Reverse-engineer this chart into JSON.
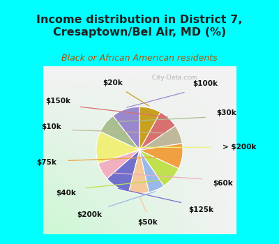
{
  "title": "Income distribution in District 7,\nCresaptown/Bel Air, MD (%)",
  "subtitle": "Black or African American residents",
  "bg_cyan": "#00FFFF",
  "bg_chart_edge": "#00e0e0",
  "labels": [
    "$100k",
    "$30k",
    "> $200k",
    "$60k",
    "$125k",
    "$50k",
    "$200k",
    "$40k",
    "$75k",
    "$10k",
    "$150k",
    "$20k"
  ],
  "sizes": [
    10.5,
    7.5,
    12.0,
    6.5,
    9.5,
    7.5,
    6.0,
    8.5,
    9.5,
    7.0,
    7.5,
    8.0
  ],
  "colors": [
    "#9988cc",
    "#aabf90",
    "#f0ef7a",
    "#f0b0c0",
    "#7070cc",
    "#f4c898",
    "#9ab8e8",
    "#c0e050",
    "#f0a040",
    "#c0b89a",
    "#d87070",
    "#c8a020"
  ],
  "startangle": 90,
  "title_fontsize": 11.5,
  "subtitle_fontsize": 9,
  "label_fontsize": 7.5
}
